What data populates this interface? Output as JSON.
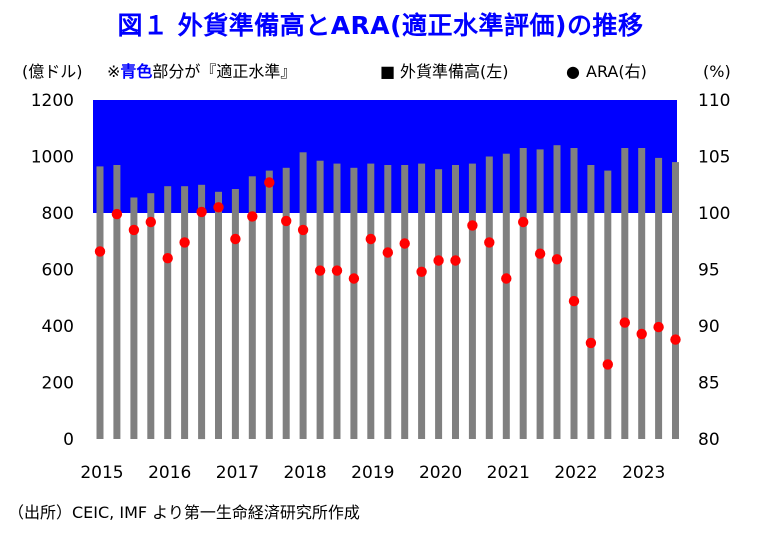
{
  "title": "図１ 外貨準備高とARA(適正水準評価)の推移",
  "source": "（出所）CEIC, IMF より第一生命経済研究所作成",
  "colors": {
    "bar": "#808080",
    "dot": "#ff0000",
    "band": "#0000ff",
    "title": "#0000ff"
  },
  "chart_data": {
    "type": "bar+scatter",
    "left_axis_label": "(億ドル)",
    "right_axis_label": "(%)",
    "note": {
      "prefix": "※",
      "highlight": "青色",
      "suffix": "部分が『適正水準』"
    },
    "legend": [
      {
        "marker": "■",
        "label": "外貨準備高(左)"
      },
      {
        "marker": "●",
        "label": "ARA(右)"
      }
    ],
    "legend_placement": "top",
    "left_ylim": [
      0,
      1200
    ],
    "left_ticks": [
      "0",
      "200",
      "400",
      "600",
      "800",
      "1000",
      "1200"
    ],
    "right_ylim": [
      80,
      110
    ],
    "right_ticks": [
      "80",
      "85",
      "90",
      "95",
      "100",
      "105",
      "110"
    ],
    "x_tick_labels": [
      "2015",
      "2016",
      "2017",
      "2018",
      "2019",
      "2020",
      "2021",
      "2022",
      "2023"
    ],
    "adequate_band_right": [
      100,
      110
    ],
    "series": [
      {
        "name": "外貨準備高(左)",
        "values": [
          965,
          970,
          855,
          870,
          895,
          895,
          900,
          875,
          885,
          930,
          950,
          960,
          1015,
          985,
          975,
          960,
          975,
          970,
          970,
          975,
          955,
          970,
          975,
          1000,
          1010,
          1030,
          1025,
          1040,
          1030,
          970,
          950,
          1030,
          1030,
          995,
          980
        ]
      },
      {
        "name": "ARA(右)",
        "values": [
          96.6,
          99.9,
          98.5,
          99.2,
          96.0,
          97.4,
          100.1,
          100.5,
          97.7,
          99.7,
          102.7,
          99.3,
          98.5,
          94.9,
          94.9,
          94.2,
          97.7,
          96.5,
          97.3,
          94.8,
          95.8,
          95.8,
          98.9,
          97.4,
          94.2,
          99.2,
          96.4,
          95.9,
          92.2,
          88.5,
          86.6,
          90.3,
          89.3,
          89.9,
          88.8
        ]
      }
    ],
    "grid": false
  }
}
